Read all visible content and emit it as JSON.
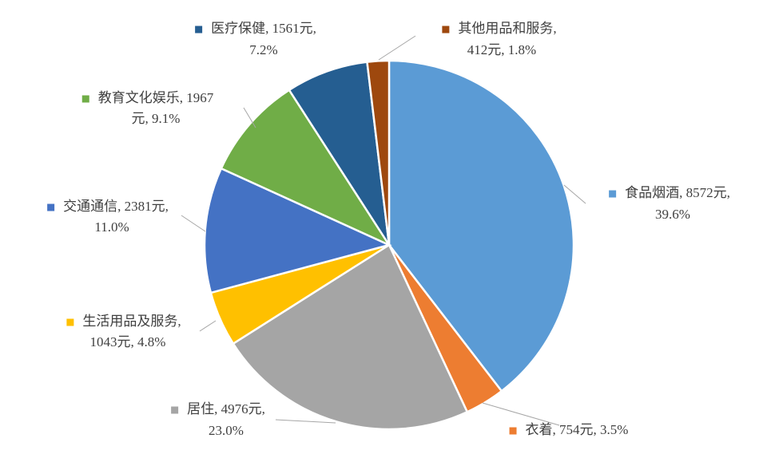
{
  "chart_data": {
    "type": "pie",
    "values": [
      8572,
      754,
      4976,
      1043,
      2381,
      1967,
      1561,
      412
    ],
    "percents": [
      39.6,
      3.5,
      23.0,
      4.8,
      11.0,
      9.1,
      7.2,
      1.8
    ],
    "value_labels": [
      [
        "食品烟酒, 8572元,",
        "39.6%"
      ],
      [
        "衣着, 754元, 3.5%"
      ],
      [
        "居住, 4976元,",
        "23.0%"
      ],
      [
        "生活用品及服务,",
        "1043元, 4.8%"
      ],
      [
        "交通通信, 2381元,",
        "11.0%"
      ],
      [
        "教育文化娱乐, 1967",
        "元, 9.1%"
      ],
      [
        "医疗保健, 1561元,",
        "7.2%"
      ],
      [
        "其他用品和服务,",
        "412元, 1.8%"
      ]
    ],
    "colors": [
      "#5b9bd5",
      "#ed7d31",
      "#a5a5a5",
      "#ffc000",
      "#4472c4",
      "#70ad47",
      "#255e91",
      "#9e480e"
    ]
  }
}
